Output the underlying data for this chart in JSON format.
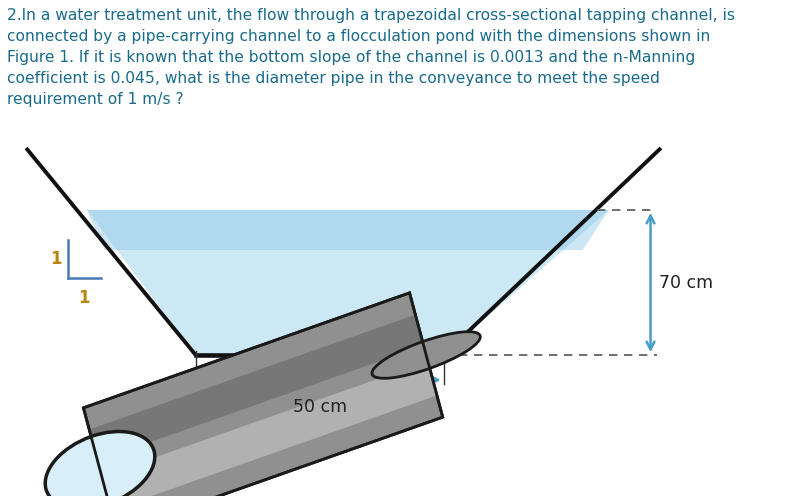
{
  "title_text": "2.In a water treatment unit, the flow through a trapezoidal cross-sectional tapping channel, is\nconnected by a pipe-carrying channel to a flocculation pond with the dimensions shown in\nFigure 1. If it is known that the bottom slope of the channel is 0.0013 and the n-Manning\ncoefficient is 0.045, what is the diameter pipe in the conveyance to meet the speed\nrequirement of 1 m/s ?",
  "title_color": "#1a6b8a",
  "title_fontsize": 11.2,
  "bg_color": "#ffffff",
  "water_color_light": "#cce8f5",
  "water_color_dark": "#8ec8e8",
  "label_70cm": "70 cm",
  "label_50cm": "50 cm",
  "label_1_vert": "1",
  "label_1_horiz": "1",
  "pipe_color": "#909090",
  "pipe_dark": "#606060",
  "pipe_light": "#c8c8c8",
  "pipe_edge_color": "#1a1a1a",
  "ellipse_face": "#d8eef8",
  "ellipse_edge": "#1a1a1a",
  "arrow_color": "#4a9cc8",
  "slope_color": "#4a7ab5",
  "wall_color": "#111111"
}
